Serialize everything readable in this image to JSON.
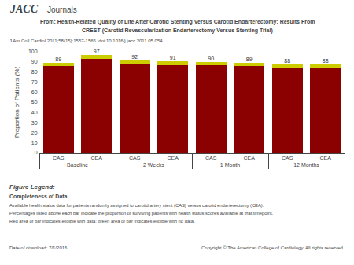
{
  "chart_data": {
    "type": "bar",
    "title": "From: Health-Related Quality of Life After Carotid Stenting Versus Carotid Endarterectomy: Results From",
    "subtitle": "CREST (Carotid Revascularization Endarterectomy Versus Stenting Trial)",
    "categories": [
      [
        "Baseline",
        "CAS"
      ],
      [
        "Baseline",
        "CEA"
      ],
      [
        "2 Weeks",
        "CAS"
      ],
      [
        "2 Weeks",
        "CEA"
      ],
      [
        "1 Month",
        "CAS"
      ],
      [
        "1 Month",
        "CEA"
      ],
      [
        "12 Months",
        "CAS"
      ],
      [
        "12 Months",
        "CEA"
      ]
    ],
    "series": [
      {
        "color": "#8B0000",
        "values": [
          86,
          93,
          88,
          87,
          87,
          86,
          84,
          84
        ]
      },
      {
        "color": "#CCCC00",
        "values": [
          3,
          4,
          4,
          4,
          3,
          3,
          4,
          4
        ]
      }
    ],
    "totals": [
      89,
      97,
      92,
      91,
      90,
      89,
      88,
      88
    ],
    "stacked": true,
    "ylabel": "Proportion of Patients (%)",
    "ylim": [
      0,
      100
    ],
    "yticks": [
      0,
      10,
      20,
      30,
      40,
      50,
      60,
      70,
      80,
      90,
      100
    ],
    "grid": false,
    "annotations": [
      "JACC",
      "Journals",
      "J Am Coll Cardiol 2011;58(15):1557-1565. doi:10.1016/j.jacc.2011.05.054",
      "Figure Legend:",
      "Completeness of Data",
      "Available health status data for patients randomly assigned to carotid artery stent (CAS) versus carotid endarterectomy (CEA).",
      "Percentages listed above each bar indicate the proportion of surviving patients with health status scores available at that timepoint.",
      "Red area of bar indicates eligible with data; green area of bar indicates eligible with no data.",
      "Date of download: 7/1/2016",
      "Copyright © The American College of Cardiology. All rights reserved."
    ]
  }
}
